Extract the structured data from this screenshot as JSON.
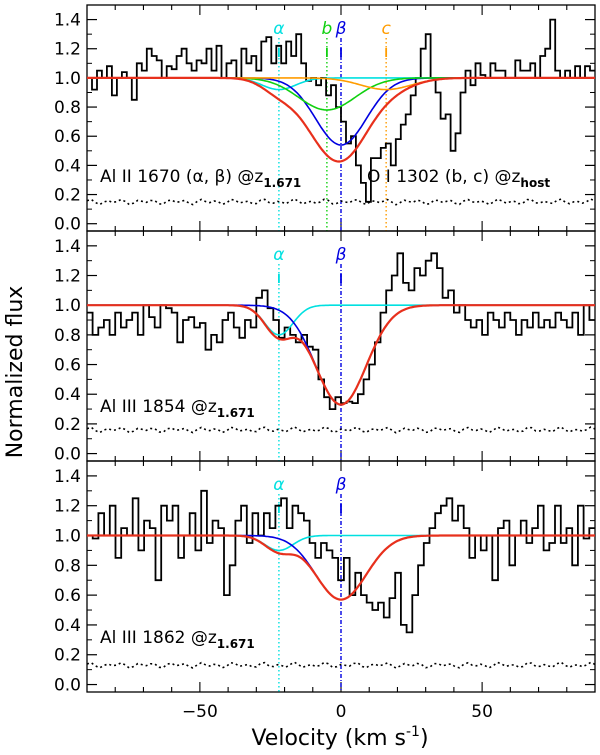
{
  "chart_data": {
    "type": "line",
    "xlabel": "Velocity (km s",
    "xlabel_sup": "-1",
    "xlabel_close": ")",
    "ylabel": "Normalized flux",
    "xlim": [
      -90,
      90
    ],
    "ylim": [
      -0.05,
      1.5
    ],
    "xticks": [
      -50,
      0,
      50
    ],
    "xtick_labels": [
      "−50",
      "0",
      "50"
    ],
    "yticks": [
      0.0,
      0.2,
      0.4,
      0.6,
      0.8,
      1.0,
      1.2,
      1.4
    ],
    "ytick_labels": [
      "0.0",
      "0.2",
      "0.4",
      "0.6",
      "0.8",
      "1.0",
      "1.2",
      "1.4"
    ],
    "colors": {
      "data": "#000000",
      "total": "#e8301c",
      "alpha": "#00e0e0",
      "beta": "#0000e0",
      "b": "#10d010",
      "c": "#ff9c00"
    },
    "panels": [
      {
        "id": "al2-1670",
        "label": "Al II 1670 (α, β) @z",
        "label_sub": "1.671",
        "label2": "O I 1302 (b, c) @z",
        "label2_sub": "host",
        "markers": [
          {
            "name": "α",
            "v": -22,
            "color": "#00e0e0"
          },
          {
            "name": "b",
            "v": -5,
            "color": "#10d010"
          },
          {
            "name": "β",
            "v": 0,
            "color": "#0000e0"
          },
          {
            "name": "c",
            "v": 16,
            "color": "#ff9c00"
          }
        ],
        "components": [
          {
            "name": "alpha",
            "center": -22,
            "width": 6,
            "depth": 0.08,
            "color": "#00e0e0"
          },
          {
            "name": "beta",
            "center": 0,
            "width": 9,
            "depth": 0.46,
            "color": "#0000e0"
          },
          {
            "name": "b",
            "center": -5,
            "width": 10,
            "depth": 0.22,
            "color": "#10d010"
          },
          {
            "name": "c",
            "center": 16,
            "width": 9,
            "depth": 0.08,
            "color": "#ff9c00"
          }
        ],
        "total_color": "#e8301c",
        "flux": [
          1.0,
          0.92,
          1.05,
          1.0,
          1.08,
          0.88,
          1.0,
          1.04,
          1.0,
          0.85,
          1.1,
          1.05,
          1.2,
          1.15,
          1.12,
          1.0,
          1.08,
          1.06,
          1.15,
          1.2,
          1.1,
          1.05,
          1.12,
          1.1,
          1.2,
          1.05,
          1.22,
          1.0,
          1.1,
          1.12,
          1.0,
          1.2,
          1.1,
          1.15,
          1.05,
          1.25,
          1.28,
          1.1,
          1.22,
          1.1,
          1.25,
          1.15,
          1.3,
          1.1,
          0.98,
          1.0,
          0.95,
          1.0,
          0.88,
          0.95,
          0.8,
          0.7,
          0.55,
          0.6,
          0.4,
          0.28,
          0.15,
          0.45,
          0.45,
          0.52,
          0.55,
          0.4,
          0.58,
          0.68,
          0.75,
          0.88,
          1.0,
          1.2,
          1.3,
          1.0,
          0.9,
          0.72,
          0.75,
          0.5,
          0.62,
          0.9,
          1.05,
          0.95,
          1.1,
          1.02,
          1.0,
          1.1,
          1.05,
          1.05,
          1.0,
          1.0,
          1.12,
          1.05,
          1.05,
          1.1,
          1.0,
          1.15,
          1.2,
          1.4,
          1.05,
          1.0,
          1.05,
          1.0,
          1.08,
          1.0,
          1.08,
          1.05
        ],
        "noise": 0.15
      },
      {
        "id": "al3-1854",
        "label": "Al III 1854 @z",
        "label_sub": "1.671",
        "markers": [
          {
            "name": "α",
            "v": -22,
            "color": "#00e0e0"
          },
          {
            "name": "β",
            "v": 0,
            "color": "#0000e0"
          }
        ],
        "components": [
          {
            "name": "alpha",
            "center": -22,
            "width": 5,
            "depth": 0.2,
            "color": "#00e0e0"
          },
          {
            "name": "beta",
            "center": 0,
            "width": 9,
            "depth": 0.67,
            "color": "#0000e0"
          }
        ],
        "total_color": "#e8301c",
        "flux": [
          0.95,
          0.8,
          0.85,
          0.9,
          0.8,
          0.95,
          0.85,
          0.9,
          0.95,
          0.8,
          1.0,
          0.92,
          0.85,
          1.0,
          0.98,
          0.95,
          0.75,
          0.9,
          0.92,
          0.85,
          0.88,
          0.7,
          0.8,
          0.75,
          0.9,
          0.95,
          0.85,
          0.78,
          0.9,
          0.85,
          1.05,
          1.1,
          0.98,
          0.9,
          0.78,
          0.85,
          0.8,
          0.75,
          0.8,
          0.72,
          0.7,
          0.5,
          0.38,
          0.3,
          0.38,
          0.34,
          0.35,
          0.34,
          0.4,
          0.5,
          0.6,
          0.75,
          0.95,
          1.1,
          1.2,
          1.35,
          1.15,
          1.1,
          1.25,
          1.2,
          1.3,
          1.35,
          1.25,
          1.05,
          1.1,
          0.95,
          1.0,
          0.9,
          0.85,
          0.9,
          0.8,
          0.95,
          0.9,
          0.85,
          0.95,
          0.9,
          0.8,
          0.9,
          0.85,
          0.95,
          0.85,
          0.9,
          0.85,
          0.95,
          0.9,
          0.85,
          0.95,
          0.8,
          1.0,
          0.9
        ],
        "noise": 0.16
      },
      {
        "id": "al3-1862",
        "label": "Al III 1862 @z",
        "label_sub": "1.671",
        "markers": [
          {
            "name": "α",
            "v": -22,
            "color": "#00e0e0"
          },
          {
            "name": "β",
            "v": 0,
            "color": "#0000e0"
          }
        ],
        "components": [
          {
            "name": "alpha",
            "center": -22,
            "width": 5,
            "depth": 0.1,
            "color": "#00e0e0"
          },
          {
            "name": "beta",
            "center": 0,
            "width": 9,
            "depth": 0.43,
            "color": "#0000e0"
          }
        ],
        "total_color": "#e8301c",
        "flux": [
          1.0,
          0.98,
          1.15,
          1.0,
          1.2,
          0.85,
          1.05,
          1.0,
          1.25,
          0.9,
          1.1,
          1.05,
          0.7,
          1.2,
          1.1,
          1.2,
          0.85,
          1.0,
          1.15,
          0.9,
          1.3,
          0.95,
          1.1,
          1.05,
          0.6,
          0.8,
          1.1,
          1.2,
          0.95,
          1.15,
          1.0,
          1.15,
          1.05,
          1.2,
          1.25,
          1.05,
          1.2,
          1.15,
          1.1,
          0.95,
          0.85,
          0.95,
          0.9,
          0.85,
          0.7,
          0.85,
          0.6,
          0.75,
          0.6,
          0.55,
          0.5,
          0.55,
          0.45,
          0.58,
          0.75,
          0.4,
          0.35,
          0.6,
          0.8,
          0.95,
          1.05,
          1.15,
          1.2,
          1.25,
          1.1,
          1.2,
          1.05,
          0.85,
          1.0,
          0.9,
          1.0,
          0.7,
          1.05,
          1.1,
          0.8,
          1.0,
          1.1,
          0.95,
          1.05,
          1.2,
          0.9,
          0.95,
          1.2,
          0.95,
          1.05,
          0.8,
          1.2,
          0.98,
          1.05
        ],
        "noise": 0.13
      }
    ]
  }
}
